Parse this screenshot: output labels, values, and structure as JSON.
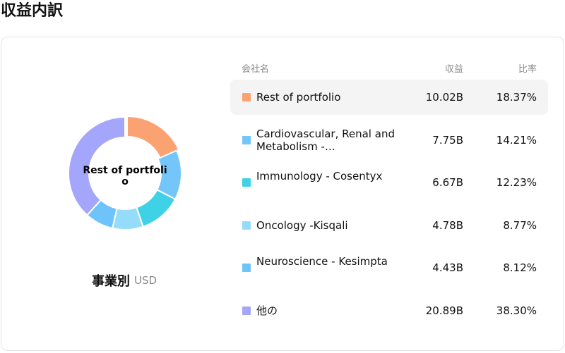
{
  "page": {
    "title": "収益内訳"
  },
  "donut": {
    "center_label": "Rest of portfolio"
  },
  "caption": {
    "label": "事業別",
    "unit": "USD"
  },
  "table": {
    "headers": {
      "name": "会社名",
      "revenue": "収益",
      "ratio": "比率"
    },
    "rows": [
      {
        "name": "Rest of portfolio",
        "revenue": "10.02B",
        "ratio": "18.37%",
        "color": "#FBA272",
        "highlight": true
      },
      {
        "name": "Cardiovascular, Renal and Metabolism -…",
        "revenue": "7.75B",
        "ratio": "14.21%",
        "color": "#74C6FA",
        "highlight": false
      },
      {
        "name": "Immunology - Cosentyx",
        "revenue": "6.67B",
        "ratio": "12.23%",
        "color": "#3FD2E6",
        "highlight": false
      },
      {
        "name": "Oncology -Kisqali",
        "revenue": "4.78B",
        "ratio": "8.77%",
        "color": "#95DCFB",
        "highlight": false
      },
      {
        "name": "Neuroscience - Kesimpta",
        "revenue": "4.43B",
        "ratio": "8.12%",
        "color": "#6EC3FB",
        "highlight": false
      },
      {
        "name": "他の",
        "revenue": "20.89B",
        "ratio": "38.30%",
        "color": "#A3A6FA",
        "highlight": false
      }
    ]
  },
  "chart_data": {
    "type": "pie",
    "categories": [
      "Rest of portfolio",
      "Cardiovascular, Renal and Metabolism -…",
      "Immunology - Cosentyx",
      "Oncology -Kisqali",
      "Neuroscience - Kesimpta",
      "他の"
    ],
    "values": [
      18.37,
      14.21,
      12.23,
      8.77,
      8.12,
      38.3
    ],
    "colors": [
      "#FBA272",
      "#74C6FA",
      "#3FD2E6",
      "#95DCFB",
      "#6EC3FB",
      "#A3A6FA"
    ],
    "donut": true
  }
}
